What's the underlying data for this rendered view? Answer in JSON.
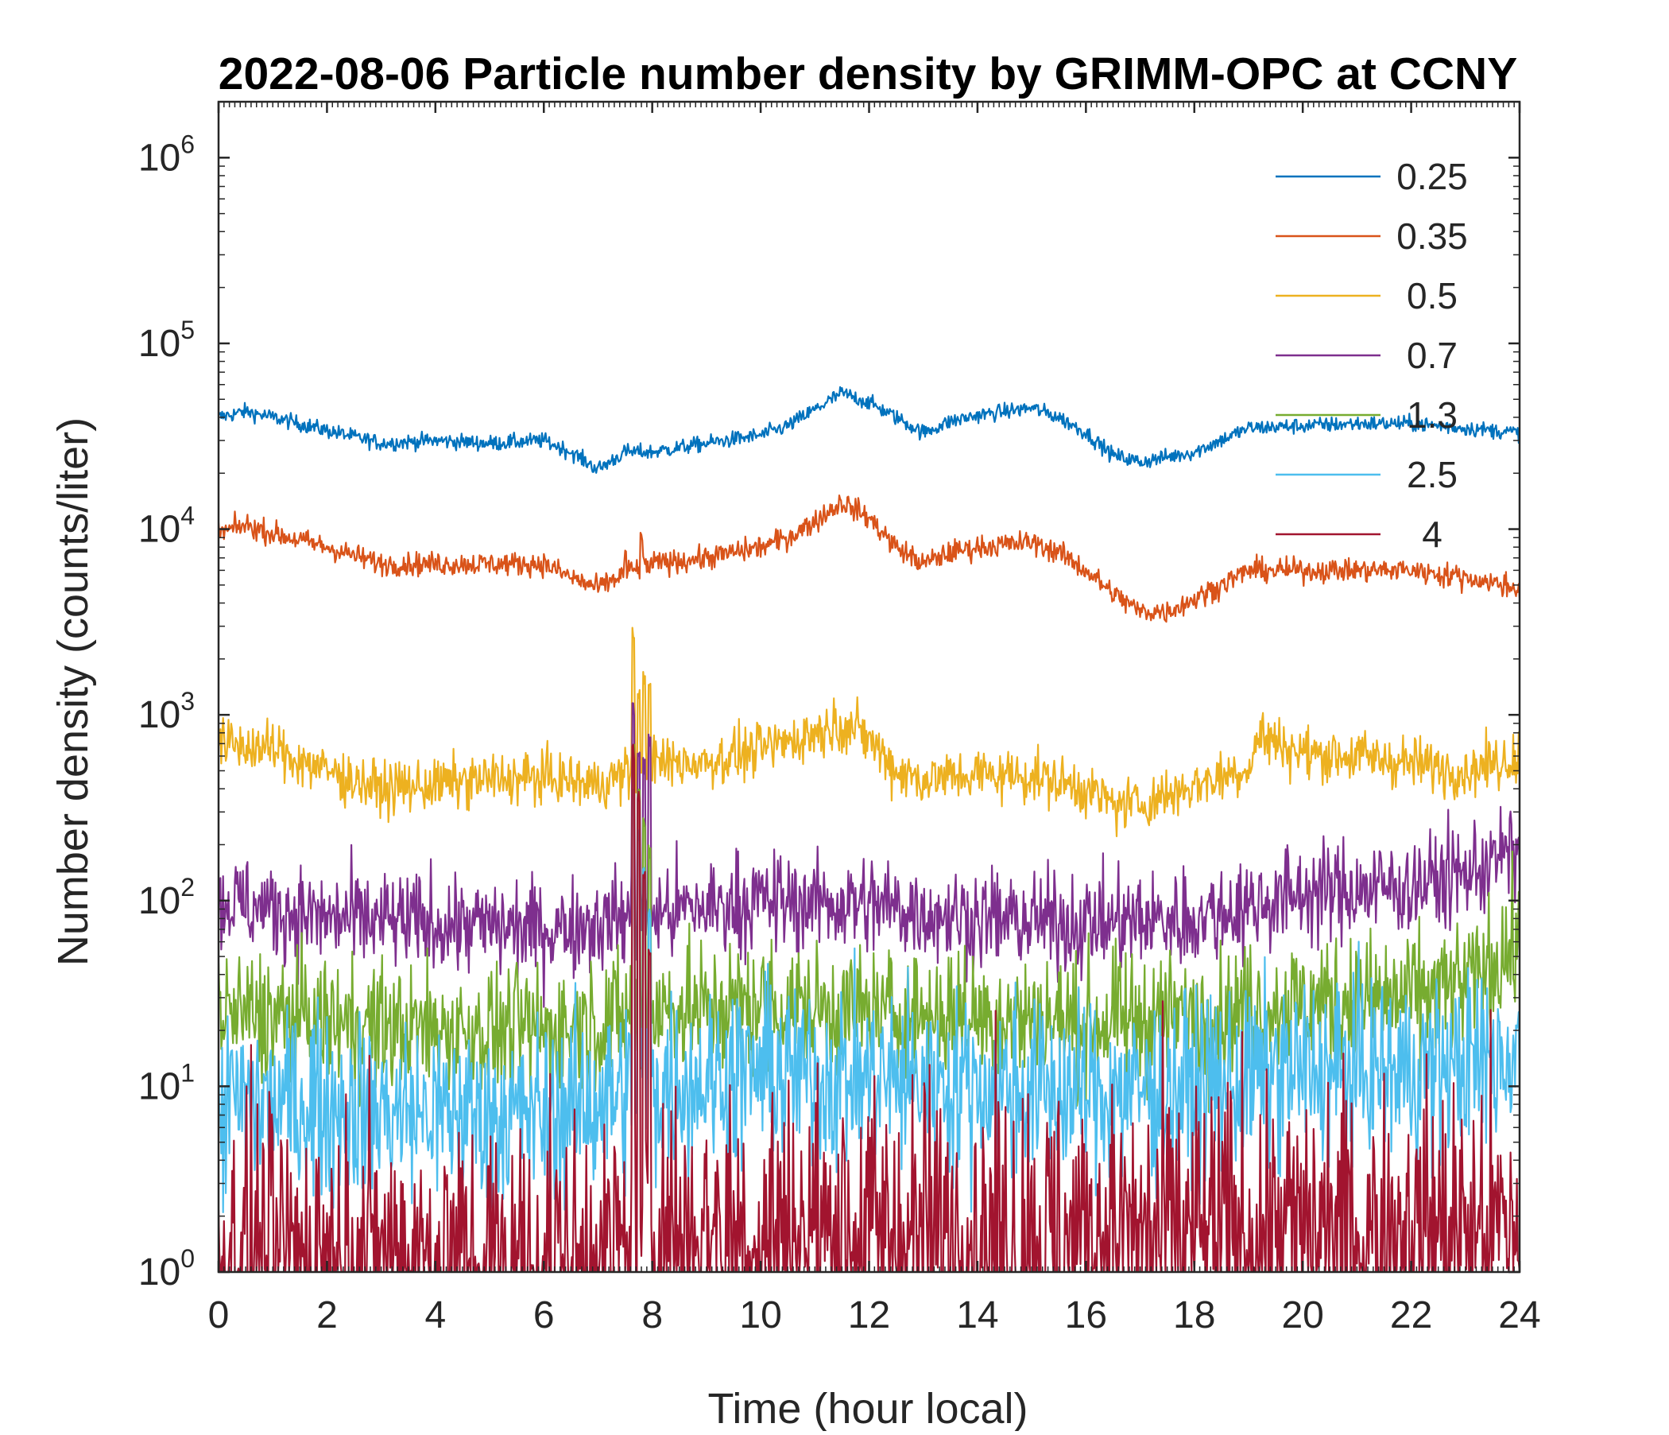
{
  "chart_data": {
    "type": "line",
    "title": "2022-08-06 Particle number density by GRIMM-OPC at CCNY",
    "xlabel": "Time (hour local)",
    "ylabel": "Number density (counts/liter)",
    "xlim": [
      0,
      24
    ],
    "ylim": [
      1,
      2000000
    ],
    "yscale": "log",
    "x_ticks": [
      "0",
      "2",
      "4",
      "6",
      "8",
      "10",
      "12",
      "14",
      "16",
      "18",
      "20",
      "22",
      "24"
    ],
    "y_ticks": [
      {
        "base": "10",
        "exp": "0"
      },
      {
        "base": "10",
        "exp": "1"
      },
      {
        "base": "10",
        "exp": "2"
      },
      {
        "base": "10",
        "exp": "3"
      },
      {
        "base": "10",
        "exp": "4"
      },
      {
        "base": "10",
        "exp": "5"
      },
      {
        "base": "10",
        "exp": "6"
      }
    ],
    "legend_position": "top-right",
    "grid": false,
    "series": [
      {
        "name": "0.25",
        "color": "#0072BD",
        "noise": 0.03,
        "floor": 1,
        "x": [
          0,
          0.5,
          1,
          2,
          3,
          4,
          5,
          6,
          6.5,
          7,
          7.5,
          8,
          9,
          10,
          10.5,
          11,
          11.5,
          12,
          12.5,
          13,
          13.5,
          14,
          15,
          15.5,
          16,
          16.5,
          17,
          18,
          19,
          20,
          21,
          22,
          23,
          24
        ],
        "values": [
          40000,
          43000,
          40000,
          34000,
          29000,
          30000,
          29000,
          30000,
          26000,
          21000,
          26000,
          26000,
          29000,
          32000,
          36000,
          44000,
          54000,
          48000,
          40000,
          33000,
          38000,
          41000,
          45000,
          40000,
          33000,
          25000,
          23000,
          26000,
          35000,
          36000,
          37000,
          37000,
          35000,
          33000
        ],
        "spikes": []
      },
      {
        "name": "0.35",
        "color": "#D95319",
        "noise": 0.045,
        "floor": 1,
        "x": [
          0,
          0.5,
          1,
          2,
          3,
          4,
          5,
          6,
          6.5,
          7,
          7.5,
          8,
          9,
          10,
          10.5,
          11,
          11.5,
          12,
          12.5,
          13,
          13.5,
          14,
          15,
          15.5,
          16,
          16.5,
          17,
          17.5,
          18,
          19,
          20,
          21,
          22,
          23,
          24
        ],
        "values": [
          9500,
          10500,
          9500,
          8000,
          6500,
          6500,
          6500,
          6500,
          5500,
          4800,
          5800,
          6500,
          7000,
          8000,
          9000,
          11000,
          14000,
          11500,
          8000,
          6500,
          7500,
          8000,
          8500,
          7500,
          6000,
          4500,
          3600,
          3600,
          4200,
          6000,
          6000,
          6000,
          6000,
          5500,
          4800
        ],
        "spikes": [
          [
            7.5,
            8000
          ],
          [
            7.8,
            10000
          ],
          [
            21.8,
            7300
          ]
        ]
      },
      {
        "name": "0.5",
        "color": "#EDB120",
        "noise": 0.1,
        "floor": 1,
        "x": [
          0,
          1,
          2,
          3,
          4,
          5,
          6,
          7,
          7.6,
          8,
          9,
          10,
          11,
          11.5,
          12,
          12.5,
          13,
          14,
          15,
          16,
          16.5,
          17,
          18,
          19,
          19.2,
          20,
          21,
          22,
          23,
          24
        ],
        "values": [
          700,
          650,
          500,
          400,
          420,
          450,
          460,
          420,
          500,
          550,
          560,
          650,
          800,
          900,
          750,
          500,
          450,
          480,
          470,
          400,
          330,
          330,
          420,
          520,
          780,
          620,
          600,
          550,
          500,
          600
        ],
        "spikes": [
          [
            7.65,
            3200
          ],
          [
            7.75,
            1500
          ],
          [
            7.85,
            1800
          ],
          [
            7.95,
            1700
          ]
        ]
      },
      {
        "name": "0.7",
        "color": "#7E2F8E",
        "noise": 0.19,
        "floor": 1,
        "x": [
          0,
          2,
          4,
          6,
          8,
          10,
          12,
          14,
          16,
          18,
          20,
          22,
          23,
          24
        ],
        "values": [
          100,
          80,
          75,
          70,
          85,
          100,
          95,
          80,
          75,
          80,
          110,
          120,
          140,
          190
        ],
        "spikes": [
          [
            7.65,
            1200
          ],
          [
            7.75,
            700
          ],
          [
            7.85,
            600
          ],
          [
            7.95,
            800
          ]
        ]
      },
      {
        "name": "1.3",
        "color": "#77AC30",
        "noise": 0.25,
        "floor": 1,
        "x": [
          0,
          2,
          4,
          6,
          8,
          10,
          12,
          14,
          16,
          18,
          20,
          22,
          23,
          24
        ],
        "values": [
          25,
          22,
          20,
          20,
          25,
          27,
          25,
          24,
          22,
          24,
          28,
          30,
          35,
          60
        ],
        "spikes": [
          [
            7.65,
            700
          ],
          [
            7.75,
            400
          ],
          [
            7.85,
            300
          ],
          [
            7.95,
            200
          ]
        ]
      },
      {
        "name": "2.5",
        "color": "#4DBEEE",
        "noise": 0.35,
        "floor": 1,
        "x": [
          0,
          2,
          4,
          6,
          8,
          10,
          12,
          14,
          16,
          18,
          20,
          22,
          23,
          24
        ],
        "values": [
          8,
          8,
          7,
          7,
          10,
          12,
          11,
          10,
          9,
          10,
          12,
          12,
          13,
          15
        ],
        "spikes": [
          [
            7.65,
            400
          ],
          [
            7.75,
            250
          ],
          [
            7.85,
            150
          ],
          [
            7.95,
            100
          ]
        ]
      },
      {
        "name": "4",
        "color": "#A2142F",
        "noise": 0.6,
        "floor": 1,
        "x": [
          0,
          4,
          7,
          8,
          12,
          16,
          20,
          24
        ],
        "values": [
          1.2,
          1.1,
          1.0,
          1.6,
          1.6,
          1.5,
          1.6,
          1.7
        ],
        "spikes": [
          [
            7.65,
            700
          ],
          [
            7.75,
            400
          ],
          [
            7.85,
            150
          ],
          [
            7.95,
            60
          ]
        ]
      }
    ]
  }
}
